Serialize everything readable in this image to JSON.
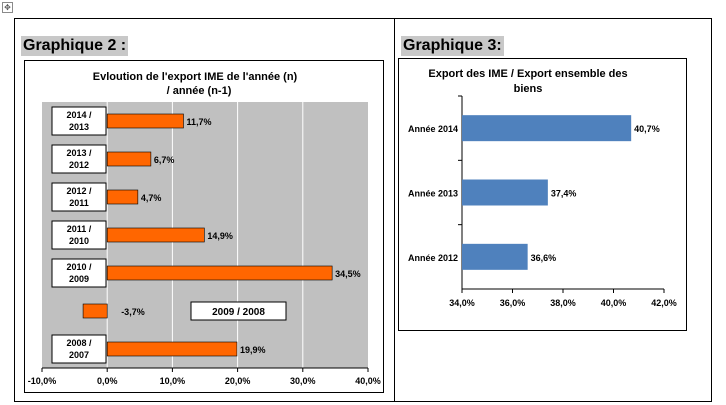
{
  "anchor_icon": "move-handle-icon",
  "chart2": {
    "heading": "Graphique 2 :",
    "title_line1": "Evloution de l'export IME   de l'année (n)",
    "title_line2": "/ année (n-1)",
    "callout": "2009 / 2008"
  },
  "chart3": {
    "heading": "Graphique 3:",
    "title_line1": "Export des IME / Export ensemble des",
    "title_line2": "biens"
  },
  "chart_data": [
    {
      "type": "bar",
      "orientation": "horizontal",
      "title": "Evloution de l'export IME   de l'année (n) / année (n-1)",
      "categories": [
        "2014 / 2013",
        "2013 / 2012",
        "2012 / 2011",
        "2011 / 2010",
        "2010 / 2009",
        "2009 / 2008",
        "2008 / 2007"
      ],
      "values": [
        11.7,
        6.7,
        4.7,
        14.9,
        34.5,
        -3.7,
        19.9
      ],
      "value_labels": [
        "11,7%",
        "6,7%",
        "4,7%",
        "14,9%",
        "34,5%",
        "-3,7%",
        "19,9%"
      ],
      "xlim": [
        -10,
        40
      ],
      "x_ticks": [
        -10,
        0,
        10,
        20,
        30,
        40
      ],
      "x_tick_labels": [
        "-10,0%",
        "0,0%",
        "10,0%",
        "20,0%",
        "30,0%",
        "40,0%"
      ],
      "bar_color": "#ff6600",
      "plot_background": "#c0c0c0",
      "grid": true
    },
    {
      "type": "bar",
      "orientation": "horizontal",
      "title": "Export des IME / Export ensemble des biens",
      "categories": [
        "Année 2014",
        "Année 2013",
        "Année 2012"
      ],
      "values": [
        40.7,
        37.4,
        36.6
      ],
      "value_labels": [
        "40,7%",
        "37,4%",
        "36,6%"
      ],
      "xlim": [
        34,
        42
      ],
      "x_ticks": [
        34,
        36,
        38,
        40,
        42
      ],
      "x_tick_labels": [
        "34,0%",
        "36,0%",
        "38,0%",
        "40,0%",
        "42,0%"
      ],
      "bar_color": "#4f81bd",
      "plot_background": "#ffffff",
      "grid": false
    }
  ]
}
